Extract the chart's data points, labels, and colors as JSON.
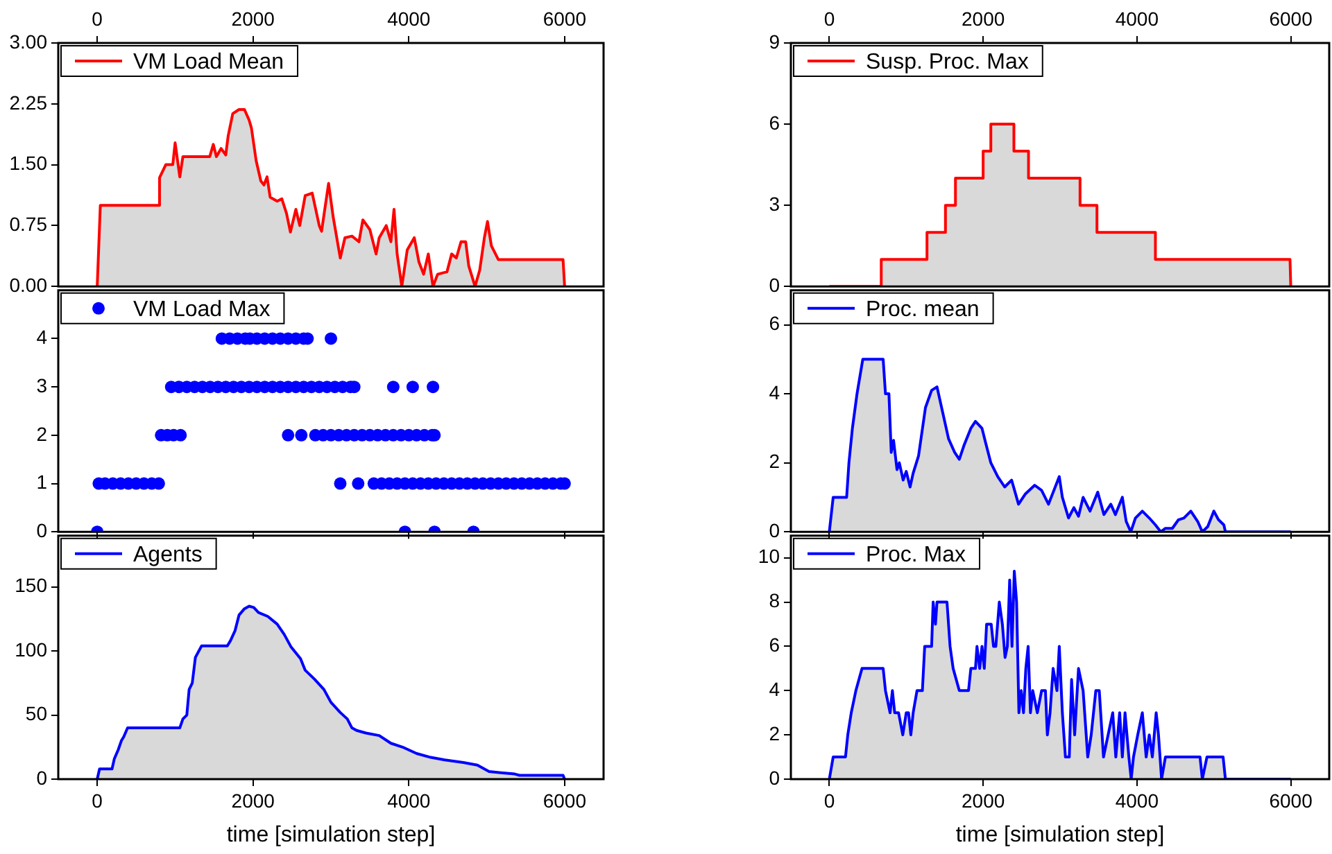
{
  "chart_data": [
    {
      "type": "area",
      "xlim": [
        -500,
        6500
      ],
      "xticks": [
        0,
        2000,
        4000,
        6000
      ],
      "ylim": [
        0,
        3
      ],
      "yticks": [
        {
          "value": 0,
          "label": "0.00"
        },
        0.75,
        {
          "value": 1.5,
          "label": "1.50"
        },
        2.25,
        {
          "value": 3,
          "label": "3.00"
        }
      ],
      "legend": "top left",
      "grid": false,
      "series": [
        {
          "name": "VM Load Mean",
          "color": "#ff0000",
          "x": [
            0,
            40,
            790,
            800,
            880,
            970,
            1000,
            1060,
            1100,
            1445,
            1490,
            1530,
            1590,
            1650,
            1680,
            1740,
            1820,
            1890,
            1950,
            1980,
            2040,
            2100,
            2140,
            2180,
            2220,
            2310,
            2370,
            2430,
            2480,
            2550,
            2600,
            2670,
            2760,
            2850,
            2880,
            2970,
            3030,
            3120,
            3180,
            3270,
            3360,
            3410,
            3500,
            3580,
            3620,
            3710,
            3770,
            3810,
            3850,
            3910,
            3980,
            4070,
            4130,
            4190,
            4250,
            4310,
            4370,
            4490,
            4550,
            4610,
            4670,
            4730,
            4770,
            4850,
            4910,
            4970,
            5010,
            5060,
            5150,
            5980,
            6000
          ],
          "values": [
            0,
            1.0,
            1.0,
            1.34,
            1.5,
            1.5,
            1.77,
            1.35,
            1.6,
            1.6,
            1.75,
            1.6,
            1.7,
            1.62,
            1.85,
            2.13,
            2.18,
            2.18,
            2.05,
            1.95,
            1.55,
            1.3,
            1.25,
            1.35,
            1.1,
            1.05,
            1.08,
            0.9,
            0.67,
            0.95,
            0.75,
            1.12,
            1.15,
            0.75,
            0.68,
            1.27,
            0.85,
            0.35,
            0.6,
            0.62,
            0.55,
            0.82,
            0.7,
            0.4,
            0.6,
            0.75,
            0.55,
            0.95,
            0.4,
            0,
            0.45,
            0.6,
            0.3,
            0.15,
            0.4,
            0,
            0.15,
            0.18,
            0.4,
            0.35,
            0.55,
            0.55,
            0.25,
            0,
            0.2,
            0.6,
            0.8,
            0.5,
            0.33,
            0.33,
            0
          ]
        }
      ]
    },
    {
      "type": "area",
      "xlim": [
        -500,
        6500
      ],
      "xticks": [
        0,
        2000,
        4000,
        6000
      ],
      "ylim": [
        0,
        9
      ],
      "yticks": [
        0,
        3,
        6,
        9
      ],
      "legend": "top left",
      "grid": false,
      "series": [
        {
          "name": "Susp. Proc. Max",
          "color": "#ff0000",
          "x": [
            0,
            675,
            675,
            1270,
            1270,
            1510,
            1510,
            1640,
            1640,
            2000,
            2000,
            2100,
            2100,
            2400,
            2400,
            2590,
            2590,
            3260,
            3260,
            3480,
            3480,
            4240,
            4240,
            5990,
            6000
          ],
          "values": [
            0,
            0,
            1,
            1,
            2,
            2,
            3,
            3,
            4,
            4,
            5,
            5,
            6,
            6,
            5,
            5,
            4,
            4,
            3,
            3,
            2,
            2,
            1,
            1,
            0
          ]
        }
      ]
    },
    {
      "type": "scatter",
      "xlim": [
        -500,
        6500
      ],
      "xticks": [
        0,
        2000,
        4000,
        6000
      ],
      "ylim": [
        0,
        5
      ],
      "yticks": [
        0,
        1,
        2,
        3,
        4
      ],
      "tick_labels": "y",
      "legend": "top left",
      "marker": "circle",
      "grid": false,
      "series": [
        {
          "name": "VM Load Max",
          "color": "#0000ff",
          "x": [
            0,
            3950,
            4330,
            4830,
            20,
            100,
            200,
            300,
            400,
            500,
            600,
            700,
            790,
            3120,
            3350,
            3550,
            3650,
            3750,
            3850,
            3950,
            4050,
            4150,
            4250,
            4350,
            4450,
            4550,
            4650,
            4750,
            4850,
            4950,
            5050,
            5150,
            5250,
            5350,
            5450,
            5550,
            5650,
            5750,
            5850,
            5950,
            6000,
            820,
            900,
            980,
            1070,
            2450,
            2620,
            2800,
            2900,
            3000,
            3100,
            3200,
            3300,
            3400,
            3500,
            3600,
            3700,
            3800,
            3900,
            4000,
            4100,
            4200,
            4300,
            4330,
            950,
            1050,
            1150,
            1250,
            1350,
            1450,
            1550,
            1650,
            1750,
            1850,
            1950,
            2050,
            2150,
            2250,
            2350,
            2450,
            2550,
            2650,
            2750,
            2850,
            2950,
            3050,
            3150,
            3250,
            3300,
            3800,
            4050,
            4310,
            1600,
            1700,
            1800,
            1900,
            1960,
            2050,
            2150,
            2250,
            2350,
            2450,
            2550,
            2650,
            2700,
            3000
          ],
          "values": [
            0,
            0,
            0,
            0,
            1,
            1,
            1,
            1,
            1,
            1,
            1,
            1,
            1,
            1,
            1,
            1,
            1,
            1,
            1,
            1,
            1,
            1,
            1,
            1,
            1,
            1,
            1,
            1,
            1,
            1,
            1,
            1,
            1,
            1,
            1,
            1,
            1,
            1,
            1,
            1,
            1,
            2,
            2,
            2,
            2,
            2,
            2,
            2,
            2,
            2,
            2,
            2,
            2,
            2,
            2,
            2,
            2,
            2,
            2,
            2,
            2,
            2,
            2,
            2,
            3,
            3,
            3,
            3,
            3,
            3,
            3,
            3,
            3,
            3,
            3,
            3,
            3,
            3,
            3,
            3,
            3,
            3,
            3,
            3,
            3,
            3,
            3,
            3,
            3,
            3,
            3,
            3,
            4,
            4,
            4,
            4,
            4,
            4,
            4,
            4,
            4,
            4,
            4,
            4,
            4,
            4
          ]
        }
      ]
    },
    {
      "type": "area",
      "xlim": [
        -500,
        6500
      ],
      "xticks": [
        0,
        2000,
        4000,
        6000
      ],
      "ylim": [
        0,
        7
      ],
      "yticks": [
        0,
        2,
        4,
        6
      ],
      "tick_labels": "y",
      "legend": "top left",
      "grid": false,
      "series": [
        {
          "name": "Proc. mean",
          "color": "#0000ff",
          "x": [
            0,
            50,
            225,
            255,
            300,
            360,
            435,
            700,
            730,
            775,
            805,
            835,
            880,
            910,
            960,
            1000,
            1050,
            1090,
            1160,
            1250,
            1330,
            1400,
            1470,
            1510,
            1550,
            1630,
            1690,
            1750,
            1840,
            1900,
            1985,
            2030,
            2100,
            2190,
            2280,
            2370,
            2460,
            2550,
            2670,
            2760,
            2850,
            2990,
            3030,
            3110,
            3180,
            3240,
            3300,
            3390,
            3490,
            3570,
            3660,
            3720,
            3810,
            3860,
            3920,
            3980,
            4070,
            4160,
            4240,
            4310,
            4370,
            4460,
            4540,
            4610,
            4700,
            4790,
            4850,
            4920,
            5000,
            5060,
            5130,
            5150,
            6000
          ],
          "values": [
            0,
            1,
            1,
            2,
            3,
            4,
            5,
            5,
            4,
            4,
            2.3,
            2.65,
            1.8,
            2,
            1.5,
            1.75,
            1.3,
            1.7,
            2.2,
            3.6,
            4.1,
            4.2,
            3.5,
            3.1,
            2.7,
            2.3,
            2.1,
            2.5,
            3.0,
            3.2,
            3.0,
            2.6,
            2.0,
            1.6,
            1.3,
            1.5,
            0.8,
            1.1,
            1.35,
            1.2,
            0.8,
            1.6,
            1.0,
            0.4,
            0.7,
            0.45,
            1.0,
            0.6,
            1.15,
            0.5,
            0.8,
            0.5,
            1.0,
            0.3,
            0,
            0.4,
            0.6,
            0.4,
            0.2,
            0,
            0.1,
            0.1,
            0.35,
            0.4,
            0.6,
            0.3,
            0,
            0.15,
            0.6,
            0.35,
            0.2,
            0,
            0
          ]
        }
      ]
    },
    {
      "type": "area",
      "xlim": [
        -500,
        6500
      ],
      "xticks": [
        0,
        2000,
        4000,
        6000
      ],
      "ylim": [
        0,
        190
      ],
      "yticks": [
        0,
        50,
        100,
        150
      ],
      "xlabel": "time [simulation step]",
      "legend": "top left",
      "grid": false,
      "series": [
        {
          "name": "Agents",
          "color": "#0000ff",
          "x": [
            0,
            30,
            190,
            220,
            270,
            310,
            340,
            390,
            1060,
            1100,
            1150,
            1180,
            1220,
            1260,
            1340,
            1670,
            1710,
            1770,
            1820,
            1890,
            1950,
            2010,
            2070,
            2190,
            2310,
            2400,
            2490,
            2610,
            2670,
            2790,
            2910,
            3000,
            3120,
            3210,
            3270,
            3330,
            3450,
            3620,
            3770,
            3920,
            4100,
            4280,
            4460,
            4700,
            4880,
            5030,
            5180,
            5360,
            5420,
            5980,
            6000
          ],
          "values": [
            0,
            8,
            8,
            16,
            23,
            30,
            33,
            40,
            40,
            47,
            50,
            70,
            75,
            95,
            104,
            104,
            108,
            116,
            128,
            133,
            135,
            134,
            130,
            127,
            121,
            113,
            103,
            94,
            85,
            78,
            70,
            60,
            52,
            47,
            40,
            38,
            36,
            34,
            28,
            25,
            20,
            17,
            15,
            13,
            11,
            6,
            5,
            4,
            3,
            3,
            0
          ]
        }
      ]
    },
    {
      "type": "area",
      "xlim": [
        -500,
        6500
      ],
      "xticks": [
        0,
        2000,
        4000,
        6000
      ],
      "ylim": [
        0,
        11
      ],
      "yticks": [
        0,
        2,
        4,
        6,
        8,
        10
      ],
      "xlabel": "time [simulation step]",
      "legend": "top left",
      "grid": false,
      "series": [
        {
          "name": "Proc. Max",
          "color": "#0000ff",
          "x": [
            0,
            50,
            210,
            240,
            285,
            345,
            425,
            700,
            730,
            790,
            820,
            850,
            900,
            955,
            1000,
            1030,
            1060,
            1090,
            1140,
            1210,
            1240,
            1330,
            1350,
            1380,
            1400,
            1530,
            1570,
            1610,
            1690,
            1810,
            1840,
            1900,
            1920,
            1955,
            1985,
            2015,
            2045,
            2105,
            2135,
            2165,
            2210,
            2250,
            2285,
            2315,
            2345,
            2375,
            2405,
            2435,
            2465,
            2495,
            2525,
            2555,
            2585,
            2615,
            2645,
            2705,
            2760,
            2810,
            2835,
            2870,
            2910,
            2960,
            2990,
            3030,
            3070,
            3120,
            3150,
            3190,
            3240,
            3300,
            3360,
            3405,
            3465,
            3510,
            3565,
            3625,
            3685,
            3725,
            3775,
            3810,
            3845,
            3895,
            3925,
            3955,
            4010,
            4070,
            4120,
            4160,
            4200,
            4250,
            4280,
            4320,
            4370,
            4820,
            4850,
            4910,
            5120,
            5150,
            6000
          ],
          "values": [
            0,
            1,
            1,
            2,
            3,
            4,
            5,
            5,
            4,
            3,
            4,
            3,
            3,
            2,
            3,
            3,
            2,
            3,
            4,
            4,
            6,
            6,
            8,
            7,
            8,
            8,
            6,
            5,
            4,
            4,
            5,
            5,
            6,
            5,
            6,
            5,
            7,
            7,
            6,
            6,
            8,
            7,
            5.5,
            6,
            9,
            6,
            9.4,
            8,
            3,
            4,
            3,
            5,
            6,
            3,
            4,
            3,
            4,
            4,
            2,
            3,
            5,
            4,
            6,
            3,
            1,
            1,
            4.5,
            2,
            5,
            4,
            1,
            2,
            4,
            4,
            1,
            2,
            3,
            1,
            3,
            1,
            3,
            1,
            0,
            1,
            2,
            3,
            1,
            2,
            1,
            3,
            2,
            0,
            1,
            1,
            0,
            1,
            1,
            0,
            0
          ]
        }
      ]
    }
  ]
}
